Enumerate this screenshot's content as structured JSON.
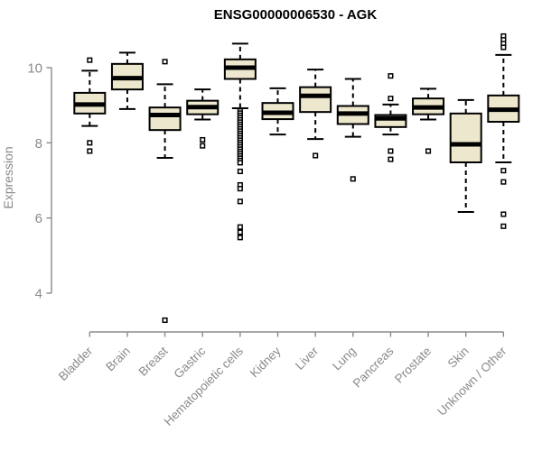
{
  "chart_data": {
    "type": "boxplot",
    "title": "ENSG00000006530 - AGK",
    "ylabel": "Expression",
    "xlabel": "",
    "yticks": [
      4,
      6,
      8,
      10
    ],
    "ylim": [
      3.0,
      11.0
    ],
    "grid": false,
    "legend": null,
    "xticklabel_rotation": 45,
    "categories": [
      "Bladder",
      "Brain",
      "Breast",
      "Gastric",
      "Hematopoietic cells",
      "Kidney",
      "Liver",
      "Lung",
      "Pancreas",
      "Prostate",
      "Skin",
      "Unknown / Other"
    ],
    "boxes": [
      {
        "category": "Bladder",
        "whisker_low": 8.45,
        "q1": 8.78,
        "median": 9.02,
        "q3": 9.33,
        "whisker_high": 9.92,
        "outliers": [
          10.2,
          8.0,
          7.78
        ]
      },
      {
        "category": "Brain",
        "whisker_low": 8.9,
        "q1": 9.42,
        "median": 9.72,
        "q3": 10.1,
        "whisker_high": 10.4,
        "outliers": []
      },
      {
        "category": "Breast",
        "whisker_low": 7.6,
        "q1": 8.34,
        "median": 8.74,
        "q3": 8.94,
        "whisker_high": 9.56,
        "outliers": [
          10.16,
          3.28
        ]
      },
      {
        "category": "Gastric",
        "whisker_low": 8.62,
        "q1": 8.76,
        "median": 8.95,
        "q3": 9.12,
        "whisker_high": 9.42,
        "outliers": [
          8.08,
          7.92
        ]
      },
      {
        "category": "Hematopoietic cells",
        "whisker_low": 8.92,
        "q1": 9.7,
        "median": 10.0,
        "q3": 10.22,
        "whisker_high": 10.64,
        "outliers": [
          8.85,
          8.79,
          8.73,
          8.67,
          8.61,
          8.55,
          8.49,
          8.43,
          8.37,
          8.31,
          8.25,
          8.19,
          8.13,
          8.07,
          8.01,
          7.95,
          7.89,
          7.83,
          7.77,
          7.71,
          7.65,
          7.59,
          7.53,
          7.47,
          7.24,
          6.88,
          6.78,
          6.44,
          5.76,
          5.62,
          5.48
        ]
      },
      {
        "category": "Kidney",
        "whisker_low": 8.22,
        "q1": 8.63,
        "median": 8.8,
        "q3": 9.06,
        "whisker_high": 9.45,
        "outliers": []
      },
      {
        "category": "Liver",
        "whisker_low": 8.1,
        "q1": 8.82,
        "median": 9.25,
        "q3": 9.48,
        "whisker_high": 9.95,
        "outliers": [
          7.66
        ]
      },
      {
        "category": "Lung",
        "whisker_low": 8.16,
        "q1": 8.5,
        "median": 8.78,
        "q3": 8.98,
        "whisker_high": 9.7,
        "outliers": [
          7.04
        ]
      },
      {
        "category": "Pancreas",
        "whisker_low": 8.22,
        "q1": 8.42,
        "median": 8.65,
        "q3": 8.74,
        "whisker_high": 9.02,
        "outliers": [
          9.78,
          9.18,
          7.78,
          7.56
        ]
      },
      {
        "category": "Prostate",
        "whisker_low": 8.62,
        "q1": 8.76,
        "median": 8.94,
        "q3": 9.18,
        "whisker_high": 9.44,
        "outliers": [
          7.78
        ]
      },
      {
        "category": "Skin",
        "whisker_low": 6.16,
        "q1": 7.48,
        "median": 7.96,
        "q3": 8.78,
        "whisker_high": 9.14,
        "outliers": []
      },
      {
        "category": "Unknown / Other",
        "whisker_low": 7.48,
        "q1": 8.56,
        "median": 8.88,
        "q3": 9.26,
        "whisker_high": 10.34,
        "outliers": [
          10.84,
          10.74,
          10.64,
          10.54,
          7.26,
          6.96,
          6.1,
          5.78
        ]
      }
    ],
    "colors": {
      "box_fill": "#EDE8CD",
      "box_border": "#000000",
      "median": "#000000",
      "axis": "#8A8A8A",
      "title": "#000000",
      "background": "#FFFFFF"
    }
  }
}
